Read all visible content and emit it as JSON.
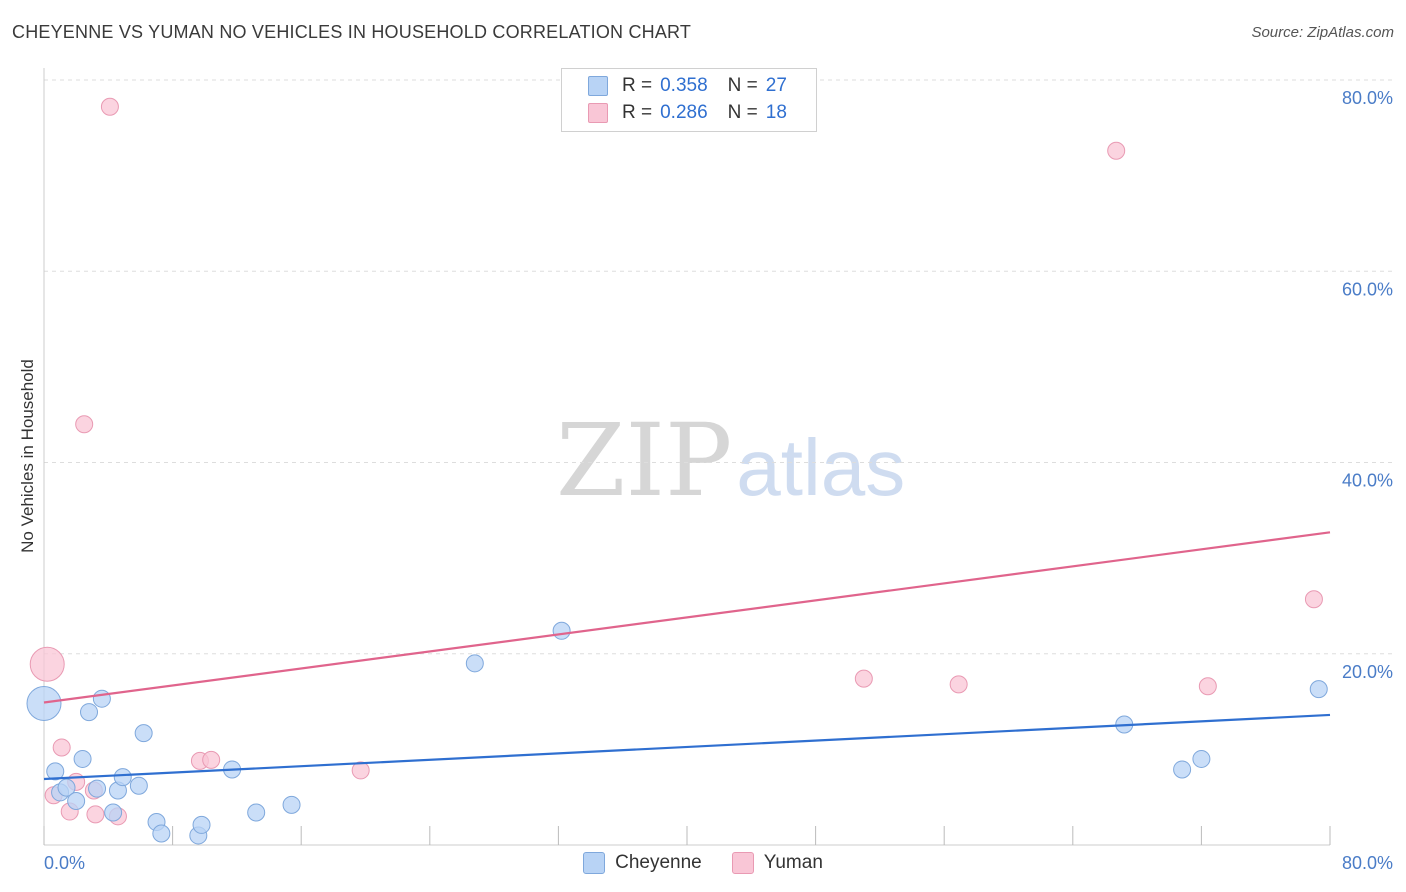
{
  "header": {
    "title": "CHEYENNE VS YUMAN NO VEHICLES IN HOUSEHOLD CORRELATION CHART",
    "source": "Source: ZipAtlas.com"
  },
  "legend": {
    "rows": [
      {
        "r_label": "R =",
        "r_value": "0.358",
        "n_label": "N =",
        "n_value": "27"
      },
      {
        "r_label": "R =",
        "r_value": "0.286",
        "n_label": "N =",
        "n_value": "18"
      }
    ]
  },
  "watermark": {
    "zip": "ZIP",
    "atlas": "atlas"
  },
  "colors": {
    "cheyenne_fill": "#b8d3f5",
    "cheyenne_stroke": "#7fa8dc",
    "cheyenne_line": "#2f6fd0",
    "yuman_fill": "#f9c6d6",
    "yuman_stroke": "#e99ab3",
    "yuman_line": "#e0648c",
    "grid": "#dddddd",
    "tick_text": "#4a7cc7"
  },
  "chart_data": {
    "type": "scatter",
    "title": "CHEYENNE VS YUMAN NO VEHICLES IN HOUSEHOLD CORRELATION CHART",
    "xlabel": "",
    "ylabel": "No Vehicles in Household",
    "xlim": [
      0,
      80
    ],
    "ylim": [
      0,
      80
    ],
    "x_tick_labels": [
      "0.0%",
      "80.0%"
    ],
    "y_ticks": [
      20,
      40,
      60,
      80
    ],
    "y_tick_labels": [
      "20.0%",
      "40.0%",
      "60.0%",
      "80.0%"
    ],
    "grid": true,
    "legend_position": "top-center",
    "series": [
      {
        "name": "Cheyenne",
        "r": 0.358,
        "n": 27,
        "trend": {
          "x": [
            0,
            80
          ],
          "y": [
            6.9,
            13.6
          ]
        },
        "points": [
          {
            "x": 0.0,
            "y": 14.8,
            "big": true
          },
          {
            "x": 0.7,
            "y": 7.7
          },
          {
            "x": 1.0,
            "y": 5.5
          },
          {
            "x": 1.4,
            "y": 6.0
          },
          {
            "x": 2.0,
            "y": 4.6
          },
          {
            "x": 2.4,
            "y": 9.0
          },
          {
            "x": 2.8,
            "y": 13.9
          },
          {
            "x": 3.3,
            "y": 5.9
          },
          {
            "x": 3.6,
            "y": 15.3
          },
          {
            "x": 4.3,
            "y": 3.4
          },
          {
            "x": 4.6,
            "y": 5.7
          },
          {
            "x": 4.9,
            "y": 7.1
          },
          {
            "x": 5.9,
            "y": 6.2
          },
          {
            "x": 6.2,
            "y": 11.7
          },
          {
            "x": 7.0,
            "y": 2.4
          },
          {
            "x": 7.3,
            "y": 1.2
          },
          {
            "x": 9.6,
            "y": 1.0
          },
          {
            "x": 9.8,
            "y": 2.1
          },
          {
            "x": 11.7,
            "y": 7.9
          },
          {
            "x": 13.2,
            "y": 3.4
          },
          {
            "x": 15.4,
            "y": 4.2
          },
          {
            "x": 26.8,
            "y": 19.0
          },
          {
            "x": 32.2,
            "y": 22.4
          },
          {
            "x": 67.2,
            "y": 12.6
          },
          {
            "x": 70.8,
            "y": 7.9
          },
          {
            "x": 72.0,
            "y": 9.0
          },
          {
            "x": 79.3,
            "y": 16.3
          }
        ]
      },
      {
        "name": "Yuman",
        "r": 0.286,
        "n": 18,
        "trend": {
          "x": [
            0,
            80
          ],
          "y": [
            14.9,
            32.7
          ]
        },
        "points": [
          {
            "x": 0.2,
            "y": 18.9,
            "big": true
          },
          {
            "x": 0.6,
            "y": 5.2
          },
          {
            "x": 1.1,
            "y": 10.2
          },
          {
            "x": 1.6,
            "y": 3.5
          },
          {
            "x": 2.0,
            "y": 6.6
          },
          {
            "x": 2.5,
            "y": 44.0
          },
          {
            "x": 3.1,
            "y": 5.7
          },
          {
            "x": 3.2,
            "y": 3.2
          },
          {
            "x": 4.1,
            "y": 77.2
          },
          {
            "x": 4.6,
            "y": 3.0
          },
          {
            "x": 9.7,
            "y": 8.8
          },
          {
            "x": 10.4,
            "y": 8.9
          },
          {
            "x": 19.7,
            "y": 7.8
          },
          {
            "x": 51.0,
            "y": 17.4
          },
          {
            "x": 56.9,
            "y": 16.8
          },
          {
            "x": 66.7,
            "y": 72.6
          },
          {
            "x": 72.4,
            "y": 16.6
          },
          {
            "x": 79.0,
            "y": 25.7
          }
        ]
      }
    ]
  },
  "bottom_legend": {
    "items": [
      {
        "label": "Cheyenne"
      },
      {
        "label": "Yuman"
      }
    ]
  }
}
